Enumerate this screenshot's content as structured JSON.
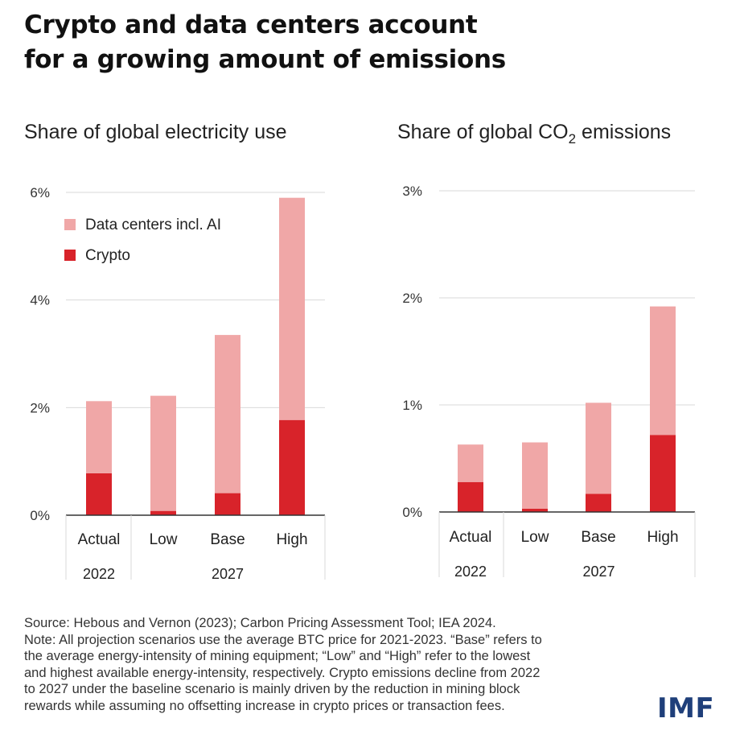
{
  "title_lines": [
    "Crypto and data centers account",
    "for a growing amount of emissions"
  ],
  "colors": {
    "data_centers": "#f0a7a7",
    "crypto": "#d8232a",
    "grid": "#d9d9d9",
    "axis": "#333333",
    "logo": "#1f3f7a"
  },
  "chart_data": [
    {
      "type": "bar",
      "stacked": true,
      "title": "Share of global electricity use",
      "title_sub": "",
      "title_tail": "",
      "categories": [
        "Actual",
        "Low",
        "Base",
        "High"
      ],
      "category_groups": [
        {
          "label": "2022",
          "span": [
            0,
            0
          ]
        },
        {
          "label": "2027",
          "span": [
            1,
            3
          ]
        }
      ],
      "series": [
        {
          "name": "Crypto",
          "values": [
            0.78,
            0.08,
            0.41,
            1.77
          ]
        },
        {
          "name": "Data centers incl. AI",
          "values": [
            1.34,
            2.14,
            2.94,
            4.13
          ]
        }
      ],
      "ylim": [
        0,
        6
      ],
      "yticks": [
        0,
        2,
        4,
        6
      ],
      "ytick_labels": [
        "0%",
        "2%",
        "4%",
        "6%"
      ],
      "legend": {
        "position": "top-left",
        "entries": [
          "Data centers incl. AI",
          "Crypto"
        ]
      },
      "grid": true
    },
    {
      "type": "bar",
      "stacked": true,
      "title": "Share of global CO",
      "title_sub": "2",
      "title_tail": " emissions",
      "categories": [
        "Actual",
        "Low",
        "Base",
        "High"
      ],
      "category_groups": [
        {
          "label": "2022",
          "span": [
            0,
            0
          ]
        },
        {
          "label": "2027",
          "span": [
            1,
            3
          ]
        }
      ],
      "series": [
        {
          "name": "Crypto",
          "values": [
            0.28,
            0.03,
            0.17,
            0.72
          ]
        },
        {
          "name": "Data centers incl. AI",
          "values": [
            0.35,
            0.62,
            0.85,
            1.2
          ]
        }
      ],
      "ylim": [
        0,
        3
      ],
      "yticks": [
        0,
        1,
        2,
        3
      ],
      "ytick_labels": [
        "0%",
        "1%",
        "2%",
        "3%"
      ],
      "grid": true
    }
  ],
  "note_lines": [
    "Source: Hebous and Vernon (2023); Carbon Pricing Assessment Tool; IEA 2024.",
    "Note: All projection scenarios use the average BTC price for 2021-2023. “Base” refers to",
    "the average energy-intensity of mining equipment; “Low” and “High” refer to the lowest",
    "and highest available energy-intensity, respectively. Crypto emissions decline from 2022",
    "to 2027 under the baseline scenario is mainly driven by the reduction in mining block",
    "rewards while assuming no offsetting increase in crypto prices or transaction fees."
  ],
  "logo_text": "IMF"
}
